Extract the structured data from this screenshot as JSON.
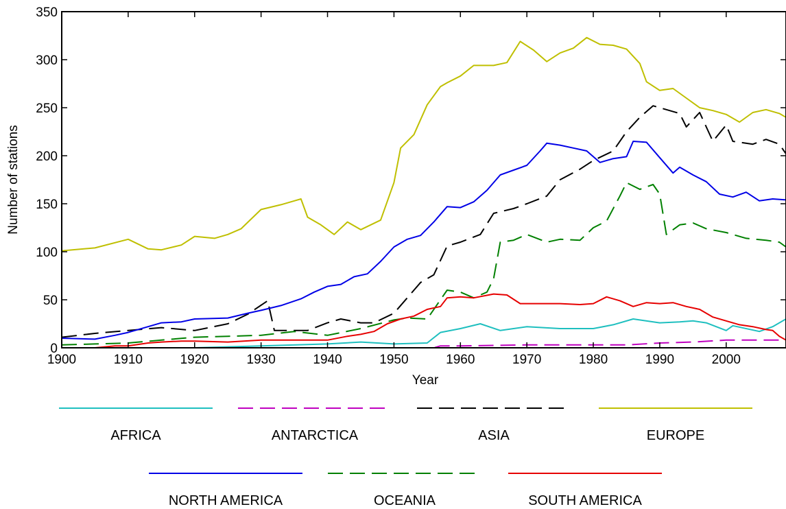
{
  "chart_data": {
    "type": "line",
    "title": "",
    "xlabel": "Year",
    "ylabel": "Number of stations",
    "xlim": [
      1900,
      2009
    ],
    "ylim": [
      0,
      350
    ],
    "xticks": [
      1900,
      1910,
      1920,
      1930,
      1940,
      1950,
      1960,
      1970,
      1980,
      1990,
      2000
    ],
    "yticks": [
      0,
      50,
      100,
      150,
      200,
      250,
      300,
      350
    ],
    "grid": false,
    "legend_position": "bottom",
    "series": [
      {
        "name": "AFRICA",
        "color": "#1ebfbf",
        "dash": "solid",
        "points": [
          [
            1900,
            0
          ],
          [
            1920,
            0
          ],
          [
            1930,
            2
          ],
          [
            1940,
            4
          ],
          [
            1945,
            6
          ],
          [
            1950,
            4
          ],
          [
            1955,
            5
          ],
          [
            1957,
            16
          ],
          [
            1960,
            20
          ],
          [
            1963,
            25
          ],
          [
            1966,
            18
          ],
          [
            1970,
            22
          ],
          [
            1975,
            20
          ],
          [
            1980,
            20
          ],
          [
            1983,
            24
          ],
          [
            1986,
            30
          ],
          [
            1990,
            26
          ],
          [
            1993,
            27
          ],
          [
            1995,
            28
          ],
          [
            1997,
            26
          ],
          [
            2000,
            18
          ],
          [
            2001,
            23
          ],
          [
            2005,
            17
          ],
          [
            2007,
            22
          ],
          [
            2009,
            30
          ]
        ]
      },
      {
        "name": "ANTARCTICA",
        "color": "#bf00bf",
        "dash": "dashed",
        "points": [
          [
            1900,
            0
          ],
          [
            1956,
            0
          ],
          [
            1957,
            2
          ],
          [
            1960,
            2
          ],
          [
            1970,
            3
          ],
          [
            1975,
            3
          ],
          [
            1980,
            3
          ],
          [
            1985,
            3
          ],
          [
            1990,
            5
          ],
          [
            1995,
            6
          ],
          [
            2000,
            8
          ],
          [
            2008,
            8
          ],
          [
            2009,
            7
          ]
        ]
      },
      {
        "name": "ASIA",
        "color": "#000000",
        "dash": "dashed",
        "points": [
          [
            1900,
            11
          ],
          [
            1905,
            15
          ],
          [
            1910,
            18
          ],
          [
            1915,
            21
          ],
          [
            1920,
            18
          ],
          [
            1925,
            25
          ],
          [
            1928,
            35
          ],
          [
            1931,
            49
          ],
          [
            1932,
            18
          ],
          [
            1937,
            18
          ],
          [
            1940,
            26
          ],
          [
            1942,
            30
          ],
          [
            1945,
            26
          ],
          [
            1947,
            26
          ],
          [
            1950,
            36
          ],
          [
            1952,
            52
          ],
          [
            1954,
            68
          ],
          [
            1956,
            76
          ],
          [
            1958,
            106
          ],
          [
            1960,
            110
          ],
          [
            1963,
            118
          ],
          [
            1965,
            140
          ],
          [
            1968,
            145
          ],
          [
            1970,
            150
          ],
          [
            1973,
            158
          ],
          [
            1975,
            175
          ],
          [
            1978,
            186
          ],
          [
            1980,
            195
          ],
          [
            1983,
            205
          ],
          [
            1985,
            225
          ],
          [
            1987,
            240
          ],
          [
            1989,
            252
          ],
          [
            1991,
            248
          ],
          [
            1993,
            244
          ],
          [
            1994,
            230
          ],
          [
            1996,
            245
          ],
          [
            1998,
            215
          ],
          [
            2000,
            232
          ],
          [
            2001,
            215
          ],
          [
            2004,
            212
          ],
          [
            2006,
            217
          ],
          [
            2008,
            212
          ],
          [
            2009,
            202
          ]
        ]
      },
      {
        "name": "EUROPE",
        "color": "#bfbf00",
        "dash": "solid",
        "points": [
          [
            1900,
            101
          ],
          [
            1905,
            104
          ],
          [
            1910,
            113
          ],
          [
            1913,
            103
          ],
          [
            1915,
            102
          ],
          [
            1918,
            107
          ],
          [
            1920,
            116
          ],
          [
            1923,
            114
          ],
          [
            1925,
            118
          ],
          [
            1927,
            124
          ],
          [
            1930,
            144
          ],
          [
            1933,
            149
          ],
          [
            1935,
            153
          ],
          [
            1936,
            155
          ],
          [
            1937,
            136
          ],
          [
            1939,
            128
          ],
          [
            1941,
            118
          ],
          [
            1943,
            131
          ],
          [
            1945,
            123
          ],
          [
            1948,
            133
          ],
          [
            1950,
            172
          ],
          [
            1951,
            208
          ],
          [
            1953,
            222
          ],
          [
            1955,
            253
          ],
          [
            1957,
            272
          ],
          [
            1958,
            276
          ],
          [
            1960,
            283
          ],
          [
            1962,
            294
          ],
          [
            1965,
            294
          ],
          [
            1967,
            297
          ],
          [
            1969,
            319
          ],
          [
            1971,
            310
          ],
          [
            1973,
            298
          ],
          [
            1975,
            307
          ],
          [
            1977,
            312
          ],
          [
            1979,
            323
          ],
          [
            1981,
            316
          ],
          [
            1983,
            315
          ],
          [
            1985,
            311
          ],
          [
            1987,
            296
          ],
          [
            1988,
            277
          ],
          [
            1990,
            268
          ],
          [
            1992,
            270
          ],
          [
            1994,
            260
          ],
          [
            1996,
            250
          ],
          [
            1998,
            247
          ],
          [
            2000,
            243
          ],
          [
            2002,
            235
          ],
          [
            2004,
            245
          ],
          [
            2006,
            248
          ],
          [
            2008,
            244
          ],
          [
            2009,
            240
          ]
        ]
      },
      {
        "name": "NORTH AMERICA",
        "color": "#0000e6",
        "dash": "solid",
        "points": [
          [
            1900,
            10
          ],
          [
            1905,
            9
          ],
          [
            1908,
            13
          ],
          [
            1910,
            16
          ],
          [
            1913,
            22
          ],
          [
            1915,
            26
          ],
          [
            1918,
            27
          ],
          [
            1920,
            30
          ],
          [
            1925,
            31
          ],
          [
            1928,
            36
          ],
          [
            1930,
            39
          ],
          [
            1933,
            44
          ],
          [
            1936,
            51
          ],
          [
            1938,
            58
          ],
          [
            1940,
            64
          ],
          [
            1942,
            66
          ],
          [
            1944,
            74
          ],
          [
            1946,
            77
          ],
          [
            1948,
            90
          ],
          [
            1950,
            105
          ],
          [
            1952,
            113
          ],
          [
            1954,
            117
          ],
          [
            1956,
            131
          ],
          [
            1958,
            147
          ],
          [
            1960,
            146
          ],
          [
            1962,
            152
          ],
          [
            1964,
            164
          ],
          [
            1966,
            180
          ],
          [
            1968,
            185
          ],
          [
            1970,
            190
          ],
          [
            1972,
            205
          ],
          [
            1973,
            213
          ],
          [
            1975,
            211
          ],
          [
            1977,
            208
          ],
          [
            1979,
            205
          ],
          [
            1981,
            193
          ],
          [
            1983,
            197
          ],
          [
            1985,
            199
          ],
          [
            1986,
            215
          ],
          [
            1988,
            214
          ],
          [
            1990,
            198
          ],
          [
            1992,
            182
          ],
          [
            1993,
            188
          ],
          [
            1995,
            180
          ],
          [
            1997,
            173
          ],
          [
            1999,
            160
          ],
          [
            2001,
            157
          ],
          [
            2003,
            162
          ],
          [
            2005,
            153
          ],
          [
            2007,
            155
          ],
          [
            2009,
            154
          ]
        ]
      },
      {
        "name": "OCEANIA",
        "color": "#008000",
        "dash": "dashed",
        "points": [
          [
            1900,
            3
          ],
          [
            1905,
            4
          ],
          [
            1910,
            5
          ],
          [
            1915,
            8
          ],
          [
            1920,
            11
          ],
          [
            1925,
            12
          ],
          [
            1930,
            13
          ],
          [
            1935,
            17
          ],
          [
            1940,
            13
          ],
          [
            1945,
            20
          ],
          [
            1950,
            29
          ],
          [
            1952,
            31
          ],
          [
            1955,
            30
          ],
          [
            1957,
            50
          ],
          [
            1958,
            60
          ],
          [
            1960,
            58
          ],
          [
            1962,
            52
          ],
          [
            1964,
            58
          ],
          [
            1965,
            72
          ],
          [
            1966,
            110
          ],
          [
            1968,
            112
          ],
          [
            1970,
            118
          ],
          [
            1973,
            110
          ],
          [
            1975,
            113
          ],
          [
            1978,
            112
          ],
          [
            1980,
            125
          ],
          [
            1982,
            132
          ],
          [
            1984,
            158
          ],
          [
            1985,
            172
          ],
          [
            1987,
            165
          ],
          [
            1989,
            170
          ],
          [
            1990,
            160
          ],
          [
            1991,
            118
          ],
          [
            1993,
            128
          ],
          [
            1995,
            130
          ],
          [
            1997,
            124
          ],
          [
            2000,
            120
          ],
          [
            2003,
            114
          ],
          [
            2006,
            112
          ],
          [
            2008,
            110
          ],
          [
            2009,
            105
          ]
        ]
      },
      {
        "name": "SOUTH AMERICA",
        "color": "#e60000",
        "dash": "solid",
        "points": [
          [
            1900,
            0
          ],
          [
            1905,
            0
          ],
          [
            1908,
            2
          ],
          [
            1910,
            2
          ],
          [
            1913,
            5
          ],
          [
            1915,
            6
          ],
          [
            1918,
            7
          ],
          [
            1920,
            7
          ],
          [
            1925,
            6
          ],
          [
            1930,
            8
          ],
          [
            1935,
            8
          ],
          [
            1940,
            8
          ],
          [
            1943,
            12
          ],
          [
            1945,
            14
          ],
          [
            1947,
            17
          ],
          [
            1949,
            25
          ],
          [
            1951,
            30
          ],
          [
            1953,
            33
          ],
          [
            1955,
            40
          ],
          [
            1957,
            43
          ],
          [
            1958,
            52
          ],
          [
            1960,
            53
          ],
          [
            1962,
            52
          ],
          [
            1965,
            56
          ],
          [
            1967,
            55
          ],
          [
            1969,
            46
          ],
          [
            1971,
            46
          ],
          [
            1975,
            46
          ],
          [
            1978,
            45
          ],
          [
            1980,
            46
          ],
          [
            1982,
            53
          ],
          [
            1984,
            49
          ],
          [
            1986,
            43
          ],
          [
            1988,
            47
          ],
          [
            1990,
            46
          ],
          [
            1992,
            47
          ],
          [
            1994,
            43
          ],
          [
            1996,
            40
          ],
          [
            1998,
            32
          ],
          [
            2000,
            28
          ],
          [
            2002,
            24
          ],
          [
            2004,
            22
          ],
          [
            2006,
            19
          ],
          [
            2007,
            18
          ],
          [
            2008,
            12
          ],
          [
            2009,
            8
          ]
        ]
      }
    ]
  }
}
